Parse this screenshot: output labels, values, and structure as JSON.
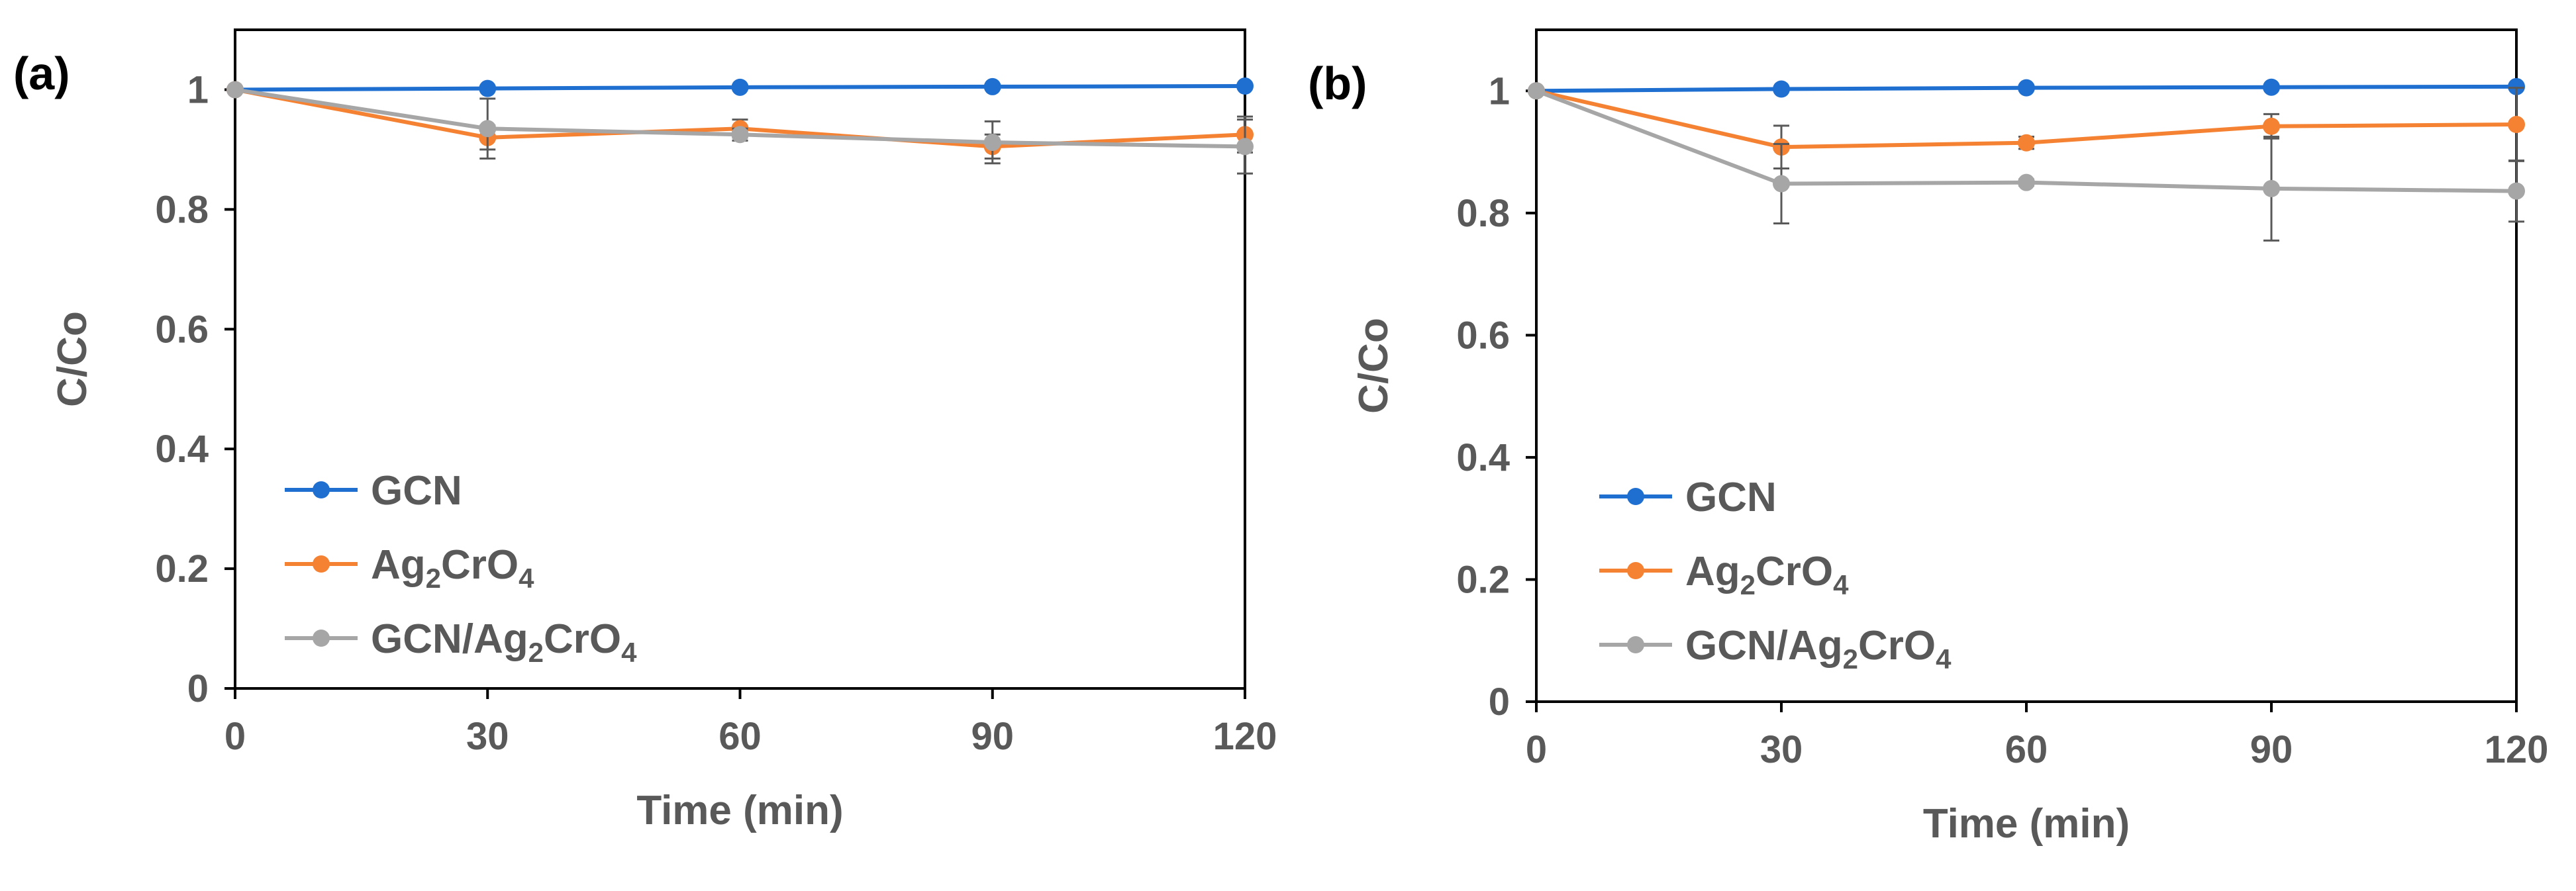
{
  "chart_data": [
    {
      "type": "line",
      "panel_label": "(a)",
      "xlabel": "Time (min)",
      "ylabel": "C/Co",
      "x": [
        0,
        30,
        60,
        90,
        120
      ],
      "xticks": [
        "0",
        "30",
        "60",
        "90",
        "120"
      ],
      "yticks": [
        "0",
        "0.2",
        "0.4",
        "0.6",
        "0.8",
        "1"
      ],
      "xlim": [
        0,
        120
      ],
      "ylim": [
        0,
        1.1
      ],
      "grid": false,
      "legend": "bottom-left",
      "series": [
        {
          "name": "GCN",
          "sub1": "",
          "mid": "",
          "sub2": "",
          "color": "#1f6fd1",
          "values": [
            1.0,
            1.002,
            1.004,
            1.005,
            1.006
          ],
          "errors": [
            0,
            0,
            0,
            0,
            0
          ]
        },
        {
          "name": "Ag",
          "sub1": "2",
          "mid": "CrO",
          "sub2": "4",
          "color": "#f58233",
          "values": [
            1.0,
            0.92,
            0.935,
            0.905,
            0.925
          ],
          "errors": [
            0,
            0.02,
            0.015,
            0.02,
            0.03
          ]
        },
        {
          "name": "GCN/Ag",
          "sub1": "2",
          "mid": "CrO",
          "sub2": "4",
          "color": "#a6a6a6",
          "values": [
            1.0,
            0.935,
            0.925,
            0.912,
            0.905
          ],
          "errors": [
            0,
            0.05,
            0.01,
            0.035,
            0.045
          ]
        }
      ]
    },
    {
      "type": "line",
      "panel_label": "(b)",
      "xlabel": "Time (min)",
      "ylabel": "C/Co",
      "x": [
        0,
        30,
        60,
        90,
        120
      ],
      "xticks": [
        "0",
        "30",
        "60",
        "90",
        "120"
      ],
      "yticks": [
        "0",
        "0.2",
        "0.4",
        "0.6",
        "0.8",
        "1"
      ],
      "xlim": [
        0,
        120
      ],
      "ylim": [
        0,
        1.1
      ],
      "grid": false,
      "legend": "bottom-left",
      "series": [
        {
          "name": "GCN",
          "sub1": "",
          "mid": "",
          "sub2": "",
          "color": "#1f6fd1",
          "values": [
            1.0,
            1.003,
            1.005,
            1.006,
            1.007
          ],
          "errors": [
            0,
            0,
            0,
            0,
            0
          ]
        },
        {
          "name": "Ag",
          "sub1": "2",
          "mid": "CrO",
          "sub2": "4",
          "color": "#f58233",
          "values": [
            1.0,
            0.908,
            0.915,
            0.942,
            0.945
          ],
          "errors": [
            0,
            0.035,
            0.01,
            0.02,
            0.06
          ]
        },
        {
          "name": "GCN/Ag",
          "sub1": "2",
          "mid": "CrO",
          "sub2": "4",
          "color": "#a6a6a6",
          "values": [
            1.0,
            0.848,
            0.85,
            0.84,
            0.836
          ],
          "errors": [
            0,
            0.065,
            0.005,
            0.085,
            0.05
          ]
        }
      ]
    }
  ]
}
